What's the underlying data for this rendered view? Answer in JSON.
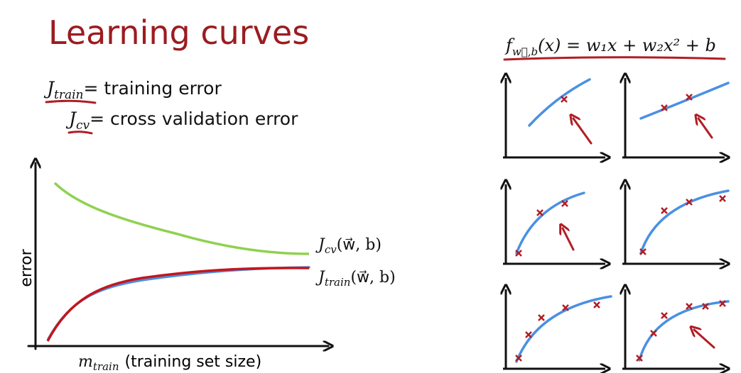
{
  "title": "Learning curves",
  "definitions": [
    {
      "symbol": "J",
      "subscript": "train",
      "text": "= training error"
    },
    {
      "symbol": "J",
      "subscript": "cv",
      "text": "= cross validation error"
    }
  ],
  "plot": {
    "y_label": "error",
    "x_label": {
      "symbol": "m",
      "subscript": "train",
      "text": "(training set size)"
    },
    "curves": [
      {
        "symbol": "J",
        "subscript": "cv",
        "args": "(w⃗, b)"
      },
      {
        "symbol": "J",
        "subscript": "train",
        "args": "(w⃗, b)"
      }
    ]
  },
  "formula": {
    "name": "f",
    "subscript": "w⃗,b",
    "body": "(x) = w₁x + w₂x² + b"
  }
}
